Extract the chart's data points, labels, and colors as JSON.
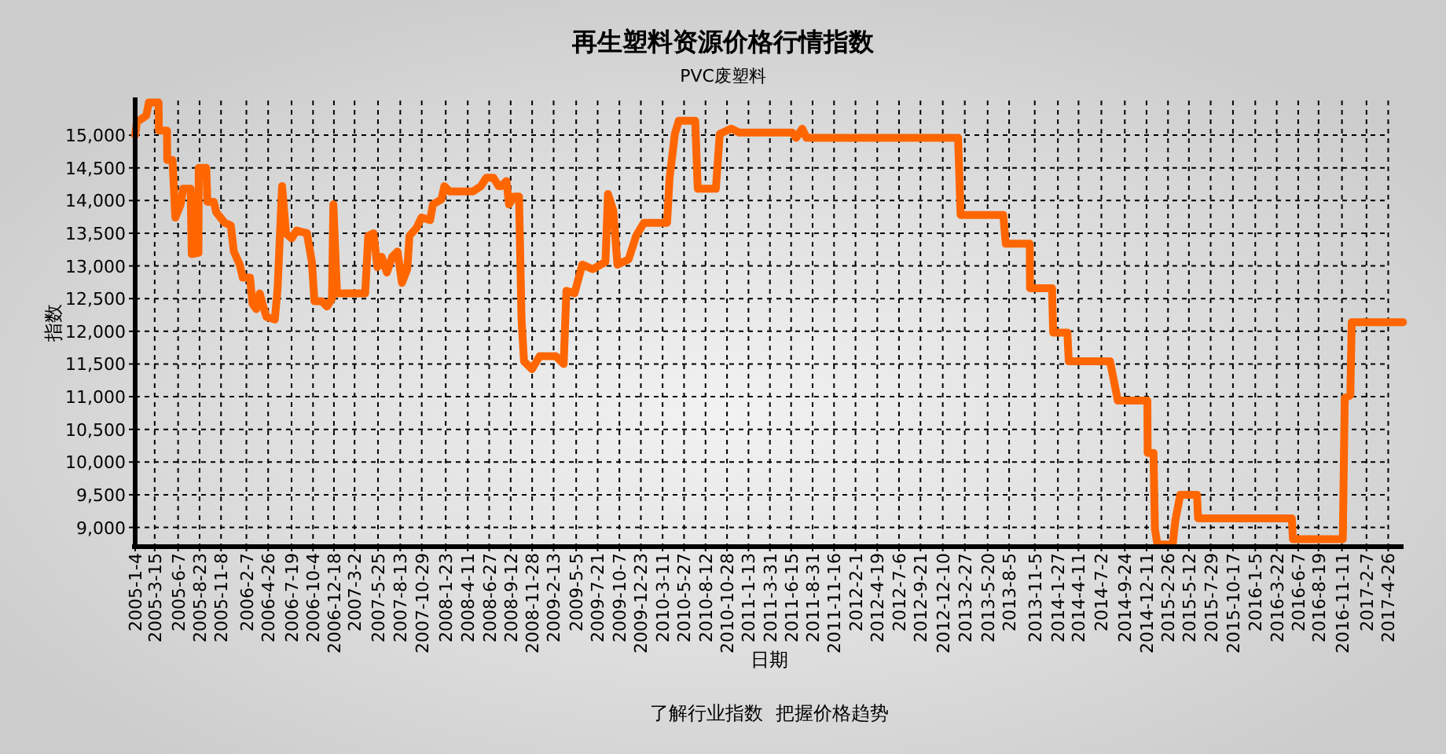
{
  "chart_data": {
    "type": "line",
    "title": "再生塑料资源价格行情指数",
    "subtitle": "PVC废塑料",
    "xlabel": "日期",
    "ylabel": "指数",
    "annotations": [
      "了解行业指数  把握价格趋势"
    ],
    "grid": true,
    "line_style": "solid",
    "xlim": [
      "2005-01-04",
      "2017-06-20"
    ],
    "ylim": [
      8730,
      15530
    ],
    "yticks": [
      {
        "value": 9000,
        "label": "9,000"
      },
      {
        "value": 9500,
        "label": "9,500"
      },
      {
        "value": 10000,
        "label": "10,000"
      },
      {
        "value": 10500,
        "label": "10,500"
      },
      {
        "value": 11000,
        "label": "11,000"
      },
      {
        "value": 11500,
        "label": "11,500"
      },
      {
        "value": 12000,
        "label": "12,000"
      },
      {
        "value": 12500,
        "label": "12,500"
      },
      {
        "value": 13000,
        "label": "13,000"
      },
      {
        "value": 13500,
        "label": "13,500"
      },
      {
        "value": 14000,
        "label": "14,000"
      },
      {
        "value": 14500,
        "label": "14,500"
      },
      {
        "value": 15000,
        "label": "15,000"
      }
    ],
    "xticks": [
      {
        "value": "2005-01-04",
        "label": "2005-1-4"
      },
      {
        "value": "2005-03-15",
        "label": "2005-3-15"
      },
      {
        "value": "2005-06-07",
        "label": "2005-6-7"
      },
      {
        "value": "2005-08-23",
        "label": "2005-8-23"
      },
      {
        "value": "2005-11-08",
        "label": "2005-11-8"
      },
      {
        "value": "2006-02-07",
        "label": "2006-2-7"
      },
      {
        "value": "2006-04-26",
        "label": "2006-4-26"
      },
      {
        "value": "2006-07-19",
        "label": "2006-7-19"
      },
      {
        "value": "2006-10-04",
        "label": "2006-10-4"
      },
      {
        "value": "2006-12-18",
        "label": "2006-12-18"
      },
      {
        "value": "2007-03-02",
        "label": "2007-3-2"
      },
      {
        "value": "2007-05-25",
        "label": "2007-5-25"
      },
      {
        "value": "2007-08-13",
        "label": "2007-8-13"
      },
      {
        "value": "2007-10-29",
        "label": "2007-10-29"
      },
      {
        "value": "2008-01-23",
        "label": "2008-1-23"
      },
      {
        "value": "2008-04-11",
        "label": "2008-4-11"
      },
      {
        "value": "2008-06-27",
        "label": "2008-6-27"
      },
      {
        "value": "2008-09-12",
        "label": "2008-9-12"
      },
      {
        "value": "2008-11-28",
        "label": "2008-11-28"
      },
      {
        "value": "2009-02-13",
        "label": "2009-2-13"
      },
      {
        "value": "2009-05-05",
        "label": "2009-5-5"
      },
      {
        "value": "2009-07-21",
        "label": "2009-7-21"
      },
      {
        "value": "2009-10-07",
        "label": "2009-10-7"
      },
      {
        "value": "2009-12-23",
        "label": "2009-12-23"
      },
      {
        "value": "2010-03-11",
        "label": "2010-3-11"
      },
      {
        "value": "2010-05-27",
        "label": "2010-5-27"
      },
      {
        "value": "2010-08-12",
        "label": "2010-8-12"
      },
      {
        "value": "2010-10-28",
        "label": "2010-10-28"
      },
      {
        "value": "2011-01-13",
        "label": "2011-1-13"
      },
      {
        "value": "2011-03-31",
        "label": "2011-3-31"
      },
      {
        "value": "2011-06-15",
        "label": "2011-6-15"
      },
      {
        "value": "2011-08-31",
        "label": "2011-8-31"
      },
      {
        "value": "2011-11-16",
        "label": "2011-11-16"
      },
      {
        "value": "2012-02-01",
        "label": "2012-2-1"
      },
      {
        "value": "2012-04-19",
        "label": "2012-4-19"
      },
      {
        "value": "2012-07-06",
        "label": "2012-7-6"
      },
      {
        "value": "2012-09-21",
        "label": "2012-9-21"
      },
      {
        "value": "2012-12-10",
        "label": "2012-12-10"
      },
      {
        "value": "2013-02-27",
        "label": "2013-2-27"
      },
      {
        "value": "2013-05-20",
        "label": "2013-5-20"
      },
      {
        "value": "2013-08-05",
        "label": "2013-8-5"
      },
      {
        "value": "2013-11-05",
        "label": "2013-11-5"
      },
      {
        "value": "2014-01-27",
        "label": "2014-1-27"
      },
      {
        "value": "2014-04-11",
        "label": "2014-4-11"
      },
      {
        "value": "2014-07-02",
        "label": "2014-7-2"
      },
      {
        "value": "2014-09-24",
        "label": "2014-9-24"
      },
      {
        "value": "2014-12-11",
        "label": "2014-12-11"
      },
      {
        "value": "2015-02-26",
        "label": "2015-2-26"
      },
      {
        "value": "2015-05-12",
        "label": "2015-5-12"
      },
      {
        "value": "2015-07-29",
        "label": "2015-7-29"
      },
      {
        "value": "2015-10-17",
        "label": "2015-10-17"
      },
      {
        "value": "2016-01-05",
        "label": "2016-1-5"
      },
      {
        "value": "2016-03-22",
        "label": "2016-3-22"
      },
      {
        "value": "2016-06-07",
        "label": "2016-6-7"
      },
      {
        "value": "2016-08-19",
        "label": "2016-8-19"
      },
      {
        "value": "2016-11-11",
        "label": "2016-11-11"
      },
      {
        "value": "2017-02-07",
        "label": "2017-2-7"
      },
      {
        "value": "2017-04-26",
        "label": "2017-4-26"
      }
    ],
    "series": [
      {
        "color": "#ff6600",
        "x": [
          "2005-01-04",
          "2005-01-10",
          "2005-02-13",
          "2005-02-22",
          "2005-03-29",
          "2005-03-30",
          "2005-04-28",
          "2005-04-29",
          "2005-05-18",
          "2005-05-28",
          "2005-06-16",
          "2005-06-25",
          "2005-07-22",
          "2005-07-26",
          "2005-08-19",
          "2005-08-20",
          "2005-09-16",
          "2005-09-20",
          "2005-10-13",
          "2005-10-22",
          "2005-11-21",
          "2005-12-13",
          "2005-12-24",
          "2006-01-14",
          "2006-01-25",
          "2006-02-20",
          "2006-03-01",
          "2006-03-14",
          "2006-03-27",
          "2006-04-07",
          "2006-04-20",
          "2006-05-20",
          "2006-05-30",
          "2006-06-15",
          "2006-06-29",
          "2006-07-19",
          "2006-08-06",
          "2006-09-12",
          "2006-09-30",
          "2006-10-09",
          "2006-11-05",
          "2006-11-23",
          "2006-12-11",
          "2006-12-16",
          "2006-12-29",
          "2007-04-09",
          "2007-04-20",
          "2007-05-09",
          "2007-05-23",
          "2007-06-07",
          "2007-06-26",
          "2007-07-15",
          "2007-08-03",
          "2007-08-19",
          "2007-09-07",
          "2007-09-15",
          "2007-10-10",
          "2007-10-28",
          "2007-11-28",
          "2007-12-08",
          "2008-01-08",
          "2008-01-18",
          "2008-02-06",
          "2008-04-30",
          "2008-05-28",
          "2008-06-17",
          "2008-07-12",
          "2008-07-31",
          "2008-08-09",
          "2008-08-28",
          "2008-09-06",
          "2008-09-24",
          "2008-10-12",
          "2008-10-21",
          "2008-10-30",
          "2008-11-27",
          "2008-12-25",
          "2009-02-21",
          "2009-03-21",
          "2009-03-31",
          "2009-04-29",
          "2009-05-27",
          "2009-07-03",
          "2009-08-18",
          "2009-08-27",
          "2009-09-15",
          "2009-09-30",
          "2009-11-09",
          "2009-12-06",
          "2010-01-03",
          "2010-03-27",
          "2010-04-05",
          "2010-04-24",
          "2010-05-08",
          "2010-07-06",
          "2010-07-15",
          "2010-09-18",
          "2010-10-02",
          "2010-11-12",
          "2010-12-10",
          "2011-06-19",
          "2011-07-03",
          "2011-07-25",
          "2011-08-09",
          "2013-02-03",
          "2013-02-12",
          "2013-07-15",
          "2013-07-24",
          "2013-10-18",
          "2013-10-19",
          "2014-01-06",
          "2014-01-10",
          "2014-03-02",
          "2014-03-07",
          "2014-08-02",
          "2014-08-30",
          "2014-12-14",
          "2014-12-15",
          "2015-01-05",
          "2015-01-10",
          "2015-01-19",
          "2015-03-15",
          "2015-03-24",
          "2015-04-11",
          "2015-06-10",
          "2015-06-14",
          "2016-05-15",
          "2016-05-19",
          "2016-11-14",
          "2016-11-21",
          "2016-12-11",
          "2016-12-16",
          "2017-06-18"
        ],
        "values": [
          15000,
          15200,
          15300,
          15500,
          15500,
          15070,
          15070,
          14620,
          14620,
          13740,
          13940,
          14180,
          14180,
          13180,
          13200,
          14500,
          14500,
          13980,
          13980,
          13820,
          13660,
          13620,
          13220,
          13020,
          12820,
          12820,
          12420,
          12340,
          12580,
          12400,
          12220,
          12180,
          12660,
          14220,
          13500,
          13420,
          13540,
          13500,
          13060,
          12460,
          12460,
          12380,
          12500,
          13940,
          12580,
          12580,
          13460,
          13500,
          12980,
          13140,
          12900,
          13140,
          13220,
          12740,
          12950,
          13460,
          13580,
          13740,
          13700,
          13940,
          14020,
          14220,
          14140,
          14140,
          14220,
          14350,
          14350,
          14220,
          14220,
          14300,
          13940,
          14060,
          14060,
          12180,
          11540,
          11420,
          11620,
          11620,
          11500,
          12620,
          12580,
          13020,
          12950,
          13060,
          14100,
          13850,
          13020,
          13100,
          13460,
          13660,
          13660,
          14340,
          15020,
          15220,
          15220,
          14180,
          14180,
          15020,
          15100,
          15040,
          15040,
          14960,
          15100,
          14960,
          14960,
          13780,
          13780,
          13340,
          13340,
          12660,
          12660,
          11980,
          11980,
          11540,
          11540,
          10940,
          10940,
          10140,
          10140,
          8980,
          8740,
          8740,
          9100,
          9500,
          9500,
          9140,
          9140,
          8820,
          8820,
          10980,
          11020,
          12140,
          12140
        ]
      }
    ]
  }
}
